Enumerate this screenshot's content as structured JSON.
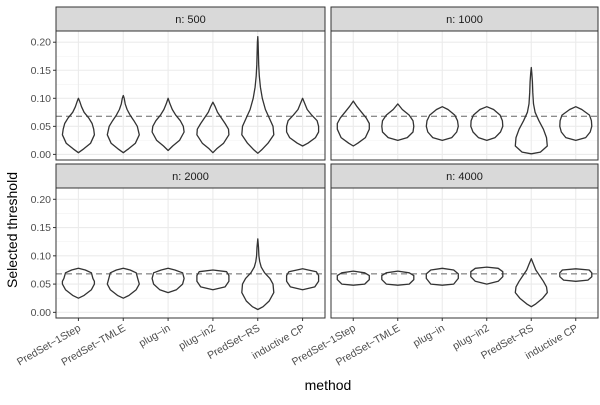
{
  "chart_data": {
    "type": "violin",
    "xlabel": "method",
    "ylabel": "Selected threshold",
    "categories": [
      "PredSet−1Step",
      "PredSet−TMLE",
      "plug−in",
      "plug−in2",
      "PredSet−RS",
      "inductive CP"
    ],
    "y_ticks": [
      "0.00",
      "0.05",
      "0.10",
      "0.15",
      "0.20"
    ],
    "ylim": [
      -0.01,
      0.22
    ],
    "reference_line": 0.068,
    "grid": true,
    "facets": [
      {
        "label": "n: 500",
        "violins": [
          {
            "profile": [
              [
                0.003,
                0
              ],
              [
                0.01,
                0.14
              ],
              [
                0.02,
                0.32
              ],
              [
                0.035,
                0.42
              ],
              [
                0.045,
                0.4
              ],
              [
                0.055,
                0.36
              ],
              [
                0.065,
                0.27
              ],
              [
                0.075,
                0.15
              ],
              [
                0.085,
                0.08
              ],
              [
                0.095,
                0.03
              ],
              [
                0.1,
                0
              ]
            ]
          },
          {
            "profile": [
              [
                0.003,
                0
              ],
              [
                0.01,
                0.14
              ],
              [
                0.02,
                0.32
              ],
              [
                0.035,
                0.42
              ],
              [
                0.05,
                0.37
              ],
              [
                0.06,
                0.28
              ],
              [
                0.07,
                0.18
              ],
              [
                0.08,
                0.1
              ],
              [
                0.09,
                0.05
              ],
              [
                0.1,
                0.025
              ],
              [
                0.105,
                0
              ]
            ]
          },
          {
            "profile": [
              [
                0.007,
                0
              ],
              [
                0.015,
                0.12
              ],
              [
                0.025,
                0.3
              ],
              [
                0.04,
                0.42
              ],
              [
                0.05,
                0.4
              ],
              [
                0.06,
                0.32
              ],
              [
                0.07,
                0.2
              ],
              [
                0.08,
                0.11
              ],
              [
                0.09,
                0.05
              ],
              [
                0.1,
                0
              ]
            ]
          },
          {
            "profile": [
              [
                0.003,
                0
              ],
              [
                0.01,
                0.1
              ],
              [
                0.02,
                0.28
              ],
              [
                0.035,
                0.42
              ],
              [
                0.045,
                0.41
              ],
              [
                0.055,
                0.32
              ],
              [
                0.065,
                0.22
              ],
              [
                0.075,
                0.12
              ],
              [
                0.085,
                0.06
              ],
              [
                0.093,
                0
              ]
            ]
          },
          {
            "profile": [
              [
                0.002,
                0
              ],
              [
                0.008,
                0.1
              ],
              [
                0.02,
                0.27
              ],
              [
                0.035,
                0.42
              ],
              [
                0.05,
                0.4
              ],
              [
                0.065,
                0.3
              ],
              [
                0.08,
                0.2
              ],
              [
                0.1,
                0.12
              ],
              [
                0.12,
                0.07
              ],
              [
                0.14,
                0.04
              ],
              [
                0.16,
                0.025
              ],
              [
                0.18,
                0.018
              ],
              [
                0.2,
                0.01
              ],
              [
                0.21,
                0
              ]
            ]
          },
          {
            "profile": [
              [
                0.015,
                0
              ],
              [
                0.02,
                0.14
              ],
              [
                0.03,
                0.34
              ],
              [
                0.04,
                0.42
              ],
              [
                0.05,
                0.42
              ],
              [
                0.06,
                0.38
              ],
              [
                0.07,
                0.24
              ],
              [
                0.08,
                0.12
              ],
              [
                0.09,
                0.06
              ],
              [
                0.1,
                0
              ]
            ]
          }
        ]
      },
      {
        "label": "n: 1000",
        "violins": [
          {
            "profile": [
              [
                0.015,
                0
              ],
              [
                0.02,
                0.12
              ],
              [
                0.03,
                0.32
              ],
              [
                0.045,
                0.42
              ],
              [
                0.055,
                0.42
              ],
              [
                0.065,
                0.34
              ],
              [
                0.075,
                0.22
              ],
              [
                0.085,
                0.1
              ],
              [
                0.095,
                0
              ]
            ]
          },
          {
            "profile": [
              [
                0.025,
                0
              ],
              [
                0.03,
                0.25
              ],
              [
                0.04,
                0.4
              ],
              [
                0.05,
                0.42
              ],
              [
                0.06,
                0.4
              ],
              [
                0.07,
                0.3
              ],
              [
                0.08,
                0.12
              ],
              [
                0.09,
                0
              ]
            ]
          },
          {
            "profile": [
              [
                0.025,
                0
              ],
              [
                0.03,
                0.25
              ],
              [
                0.04,
                0.38
              ],
              [
                0.05,
                0.42
              ],
              [
                0.06,
                0.4
              ],
              [
                0.07,
                0.33
              ],
              [
                0.08,
                0.15
              ],
              [
                0.085,
                0
              ]
            ]
          },
          {
            "profile": [
              [
                0.025,
                0
              ],
              [
                0.03,
                0.22
              ],
              [
                0.04,
                0.36
              ],
              [
                0.05,
                0.42
              ],
              [
                0.06,
                0.41
              ],
              [
                0.07,
                0.35
              ],
              [
                0.08,
                0.18
              ],
              [
                0.085,
                0
              ]
            ]
          },
          {
            "profile": [
              [
                0.001,
                0
              ],
              [
                0.004,
                0.24
              ],
              [
                0.015,
                0.42
              ],
              [
                0.03,
                0.4
              ],
              [
                0.045,
                0.32
              ],
              [
                0.06,
                0.2
              ],
              [
                0.075,
                0.1
              ],
              [
                0.09,
                0.06
              ],
              [
                0.11,
                0.04
              ],
              [
                0.13,
                0.03
              ],
              [
                0.145,
                0.015
              ],
              [
                0.155,
                0
              ]
            ]
          },
          {
            "profile": [
              [
                0.025,
                0
              ],
              [
                0.03,
                0.26
              ],
              [
                0.04,
                0.38
              ],
              [
                0.05,
                0.42
              ],
              [
                0.06,
                0.41
              ],
              [
                0.07,
                0.36
              ],
              [
                0.08,
                0.16
              ],
              [
                0.085,
                0
              ]
            ]
          }
        ]
      },
      {
        "label": "n: 2000",
        "violins": [
          {
            "profile": [
              [
                0.025,
                0
              ],
              [
                0.03,
                0.15
              ],
              [
                0.04,
                0.34
              ],
              [
                0.05,
                0.42
              ],
              [
                0.055,
                0.42
              ],
              [
                0.06,
                0.38
              ],
              [
                0.07,
                0.34
              ],
              [
                0.075,
                0.18
              ],
              [
                0.078,
                0
              ]
            ]
          },
          {
            "profile": [
              [
                0.025,
                0
              ],
              [
                0.03,
                0.15
              ],
              [
                0.04,
                0.34
              ],
              [
                0.05,
                0.42
              ],
              [
                0.06,
                0.38
              ],
              [
                0.07,
                0.34
              ],
              [
                0.075,
                0.18
              ],
              [
                0.078,
                0
              ]
            ]
          },
          {
            "profile": [
              [
                0.035,
                0
              ],
              [
                0.04,
                0.22
              ],
              [
                0.05,
                0.38
              ],
              [
                0.06,
                0.42
              ],
              [
                0.07,
                0.38
              ],
              [
                0.075,
                0.18
              ],
              [
                0.078,
                0
              ]
            ]
          },
          {
            "profile": [
              [
                0.04,
                0
              ],
              [
                0.045,
                0.32
              ],
              [
                0.055,
                0.42
              ],
              [
                0.065,
                0.42
              ],
              [
                0.072,
                0.36
              ],
              [
                0.075,
                0
              ]
            ]
          },
          {
            "profile": [
              [
                0.005,
                0
              ],
              [
                0.01,
                0.14
              ],
              [
                0.02,
                0.3
              ],
              [
                0.035,
                0.42
              ],
              [
                0.05,
                0.4
              ],
              [
                0.06,
                0.32
              ],
              [
                0.07,
                0.18
              ],
              [
                0.08,
                0.09
              ],
              [
                0.09,
                0.05
              ],
              [
                0.1,
                0.03
              ],
              [
                0.115,
                0.02
              ],
              [
                0.13,
                0
              ]
            ]
          },
          {
            "profile": [
              [
                0.04,
                0
              ],
              [
                0.045,
                0.32
              ],
              [
                0.055,
                0.42
              ],
              [
                0.065,
                0.42
              ],
              [
                0.072,
                0.36
              ],
              [
                0.077,
                0
              ]
            ]
          }
        ]
      },
      {
        "label": "n: 4000",
        "violins": [
          {
            "profile": [
              [
                0.048,
                0
              ],
              [
                0.05,
                0.3
              ],
              [
                0.058,
                0.42
              ],
              [
                0.065,
                0.42
              ],
              [
                0.07,
                0.3
              ],
              [
                0.073,
                0
              ]
            ]
          },
          {
            "profile": [
              [
                0.048,
                0
              ],
              [
                0.05,
                0.3
              ],
              [
                0.058,
                0.42
              ],
              [
                0.065,
                0.42
              ],
              [
                0.07,
                0.3
              ],
              [
                0.073,
                0
              ]
            ]
          },
          {
            "profile": [
              [
                0.048,
                0
              ],
              [
                0.05,
                0.3
              ],
              [
                0.06,
                0.42
              ],
              [
                0.068,
                0.42
              ],
              [
                0.075,
                0.3
              ],
              [
                0.078,
                0
              ]
            ]
          },
          {
            "profile": [
              [
                0.05,
                0
              ],
              [
                0.055,
                0.3
              ],
              [
                0.063,
                0.42
              ],
              [
                0.072,
                0.42
              ],
              [
                0.078,
                0.3
              ],
              [
                0.08,
                0
              ]
            ]
          },
          {
            "profile": [
              [
                0.01,
                0
              ],
              [
                0.015,
                0.12
              ],
              [
                0.025,
                0.3
              ],
              [
                0.035,
                0.42
              ],
              [
                0.045,
                0.4
              ],
              [
                0.055,
                0.32
              ],
              [
                0.065,
                0.22
              ],
              [
                0.075,
                0.12
              ],
              [
                0.085,
                0.06
              ],
              [
                0.095,
                0
              ]
            ]
          },
          {
            "profile": [
              [
                0.055,
                0
              ],
              [
                0.057,
                0.32
              ],
              [
                0.063,
                0.42
              ],
              [
                0.07,
                0.42
              ],
              [
                0.075,
                0.35
              ],
              [
                0.077,
                0
              ]
            ]
          }
        ]
      }
    ]
  }
}
